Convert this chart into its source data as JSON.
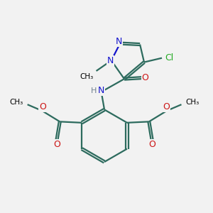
{
  "bg_color": "#f2f2f2",
  "bond_color": "#2d6b5e",
  "n_color": "#1414cc",
  "o_color": "#cc1414",
  "cl_color": "#22aa22",
  "lw": 1.6,
  "figsize": [
    3.0,
    3.0
  ],
  "dpi": 100,
  "xlim": [
    0,
    10
  ],
  "ylim": [
    0,
    10
  ]
}
